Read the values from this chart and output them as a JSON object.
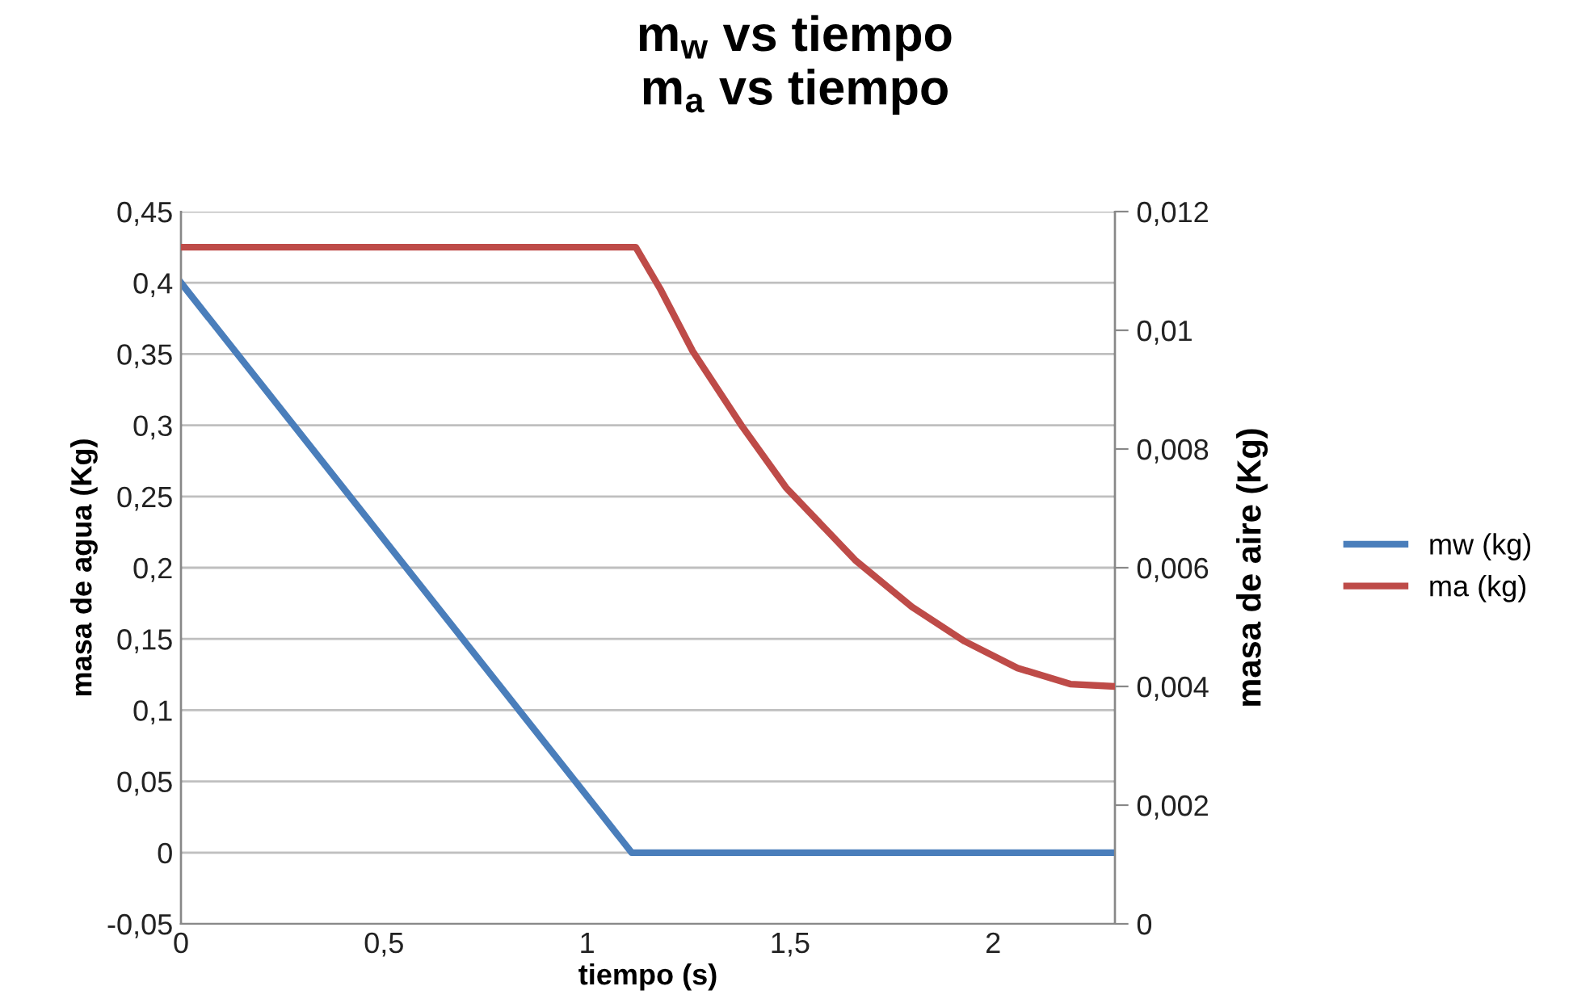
{
  "chart_data": {
    "type": "line",
    "title": "m$_{w}$ vs tiempo\nm$_{a}$ vs tiempo",
    "xlabel": "tiempo (s)",
    "ylabel": "masa de agua (Kg)",
    "y2label": "masa de aire (Kg)",
    "xlim": [
      0,
      2.3
    ],
    "xticks": [
      0,
      {
        "value": 0.5,
        "label": "0,5"
      },
      1,
      {
        "value": 1.5,
        "label": "1,5"
      },
      2
    ],
    "ylim": [
      -0.05,
      0.45
    ],
    "yticks": [
      {
        "value": -0.05,
        "label": "-0,05"
      },
      0,
      {
        "value": 0.05,
        "label": "0,05"
      },
      {
        "value": 0.1,
        "label": "0,1"
      },
      {
        "value": 0.15,
        "label": "0,15"
      },
      {
        "value": 0.2,
        "label": "0,2"
      },
      {
        "value": 0.25,
        "label": "0,25"
      },
      {
        "value": 0.3,
        "label": "0,3"
      },
      {
        "value": 0.35,
        "label": "0,35"
      },
      {
        "value": 0.4,
        "label": "0,4"
      },
      {
        "value": 0.45,
        "label": "0,45"
      }
    ],
    "y2lim": [
      0,
      0.012
    ],
    "y2ticks": [
      0,
      {
        "value": 0.002,
        "label": "0,002"
      },
      {
        "value": 0.004,
        "label": "0,004"
      },
      {
        "value": 0.006,
        "label": "0,006"
      },
      {
        "value": 0.008,
        "label": "0,008"
      },
      {
        "value": 0.01,
        "label": "0,01"
      },
      {
        "value": 0.012,
        "label": "0,012"
      }
    ],
    "grid": "y",
    "legend": "right",
    "marker": "none",
    "line_style": "solid",
    "series": [
      {
        "name": "mw (kg)",
        "color": "#4a7ebb",
        "x": [
          0,
          1.11,
          2.3
        ],
        "values": [
          0.4,
          0,
          0
        ]
      },
      {
        "name": "ma (kg)",
        "color": "#be4b48",
        "axis": "y2",
        "x": [
          0,
          1.12,
          1.18,
          1.26,
          1.38,
          1.49,
          1.66,
          1.8,
          1.93,
          2.06,
          2.19,
          2.3
        ],
        "values": [
          0.0114,
          0.0114,
          0.0107,
          0.00965,
          0.0084,
          0.00735,
          0.00613,
          0.00534,
          0.00476,
          0.00431,
          0.00404,
          0.004
        ]
      }
    ]
  }
}
